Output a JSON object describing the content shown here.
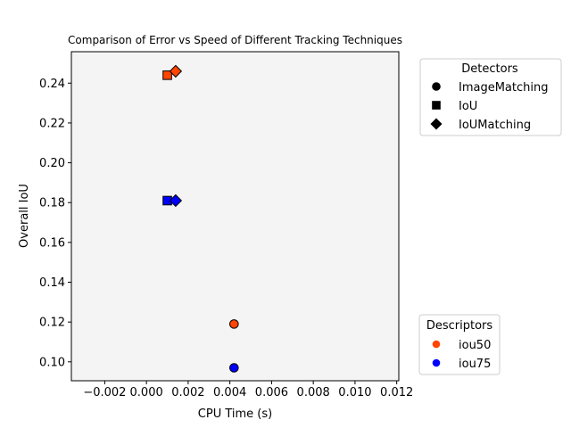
{
  "chart_data": {
    "type": "scatter",
    "title": "Comparison of Error vs Speed of Different Tracking Techniques",
    "xlabel": "CPU Time (s)",
    "ylabel": "Overall IoU",
    "xlim": [
      -0.0036,
      0.0121
    ],
    "ylim": [
      0.0905,
      0.2558
    ],
    "x_ticks": [
      -0.002,
      0.0,
      0.002,
      0.004,
      0.006,
      0.008,
      0.01,
      0.012
    ],
    "x_tick_labels": [
      "−0.002",
      "0.000",
      "0.002",
      "0.004",
      "0.006",
      "0.008",
      "0.010",
      "0.012"
    ],
    "y_ticks": [
      0.1,
      0.12,
      0.14,
      0.16,
      0.18,
      0.2,
      0.22,
      0.24
    ],
    "y_tick_labels": [
      "0.10",
      "0.12",
      "0.14",
      "0.16",
      "0.18",
      "0.20",
      "0.22",
      "0.24"
    ],
    "grid": false,
    "background_color": "#f4f4f4",
    "points": [
      {
        "detector": "ImageMatching",
        "descriptor": "iou50",
        "x": 0.0042,
        "y": 0.119
      },
      {
        "detector": "ImageMatching",
        "descriptor": "iou75",
        "x": 0.0042,
        "y": 0.097
      },
      {
        "detector": "IoU",
        "descriptor": "iou50",
        "x": 0.001,
        "y": 0.244
      },
      {
        "detector": "IoU",
        "descriptor": "iou75",
        "x": 0.001,
        "y": 0.181
      },
      {
        "detector": "IoUMatching",
        "descriptor": "iou50",
        "x": 0.0014,
        "y": 0.246
      },
      {
        "detector": "IoUMatching",
        "descriptor": "iou75",
        "x": 0.0014,
        "y": 0.181
      }
    ],
    "legend_detectors": {
      "title": "Detectors",
      "placement": "upper-right-outside",
      "entries": [
        {
          "label": "ImageMatching",
          "marker": "circle"
        },
        {
          "label": "IoU",
          "marker": "square"
        },
        {
          "label": "IoUMatching",
          "marker": "diamond"
        }
      ]
    },
    "legend_descriptors": {
      "title": "Descriptors",
      "placement": "lower-right-outside",
      "entries": [
        {
          "label": "iou50",
          "color": "#ff4500"
        },
        {
          "label": "iou75",
          "color": "#0000ff"
        }
      ]
    }
  }
}
